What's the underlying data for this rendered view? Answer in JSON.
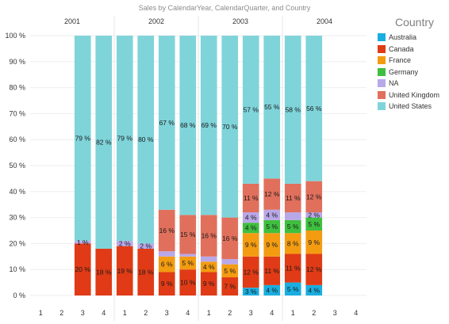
{
  "chart_data": {
    "type": "bar",
    "stacked": true,
    "normalized_percent": true,
    "title": "Sales by CalendarYear, CalendarQuarter, and Country",
    "y_tick_labels": [
      "0 %",
      "10 %",
      "20 %",
      "30 %",
      "40 %",
      "50 %",
      "60 %",
      "70 %",
      "80 %",
      "90 %",
      "100 %"
    ],
    "ylim": [
      0,
      100
    ],
    "grid": true,
    "legend_position": "right",
    "legend_title": "Country",
    "groups": [
      {
        "year": "2001",
        "quarters": [
          "1",
          "2",
          "3",
          "4"
        ]
      },
      {
        "year": "2002",
        "quarters": [
          "1",
          "2",
          "3",
          "4"
        ]
      },
      {
        "year": "2003",
        "quarters": [
          "1",
          "2",
          "3",
          "4"
        ]
      },
      {
        "year": "2004",
        "quarters": [
          "1",
          "2",
          "3",
          "4"
        ]
      }
    ],
    "series": [
      {
        "name": "Australia",
        "color": "#1aaee0",
        "values": [
          null,
          null,
          0,
          0,
          0,
          0,
          0,
          0,
          0,
          0,
          3,
          4,
          5,
          4,
          null,
          null
        ],
        "labels": [
          "",
          "",
          "",
          "",
          "",
          "",
          "",
          "",
          "",
          "",
          "3 %",
          "4 %",
          "5 %",
          "4 %",
          "",
          ""
        ]
      },
      {
        "name": "Canada",
        "color": "#e03b16",
        "values": [
          null,
          null,
          20,
          18,
          19,
          18,
          9,
          10,
          9,
          7,
          12,
          11,
          11,
          12,
          null,
          null
        ],
        "labels": [
          "",
          "",
          "20 %",
          "18 %",
          "19 %",
          "18 %",
          "9 %",
          "10 %",
          "9 %",
          "7 %",
          "12 %",
          "11 %",
          "11 %",
          "12 %",
          "",
          ""
        ]
      },
      {
        "name": "France",
        "color": "#f39c12",
        "values": [
          null,
          null,
          0,
          0,
          0,
          0,
          6,
          5,
          4,
          5,
          9,
          9,
          8,
          9,
          null,
          null
        ],
        "labels": [
          "",
          "",
          "",
          "",
          "",
          "",
          "6 %",
          "5 %",
          "4 %",
          "5 %",
          "9 %",
          "9 %",
          "8 %",
          "9 %",
          "",
          ""
        ]
      },
      {
        "name": "Germany",
        "color": "#3fbf3f",
        "values": [
          null,
          null,
          0,
          0,
          0,
          0,
          0,
          0,
          0,
          0,
          4,
          5,
          5,
          5,
          null,
          null
        ],
        "labels": [
          "",
          "",
          "",
          "",
          "",
          "",
          "",
          "",
          "",
          "",
          "4 %",
          "5 %",
          "5 %",
          "5 %",
          "",
          ""
        ]
      },
      {
        "name": "NA",
        "color": "#b9a8e8",
        "values": [
          null,
          null,
          1,
          0,
          2,
          2,
          2,
          1,
          2,
          2,
          4,
          4,
          3,
          2,
          null,
          null
        ],
        "labels": [
          "",
          "",
          "1 %",
          "",
          "2 %",
          "2 %",
          "",
          "",
          "",
          "",
          "4 %",
          "4 %",
          "",
          "2 %",
          "",
          ""
        ]
      },
      {
        "name": "United Kingdom",
        "color": "#e0705c",
        "values": [
          null,
          null,
          0,
          0,
          0,
          0,
          16,
          15,
          16,
          16,
          11,
          12,
          11,
          12,
          null,
          null
        ],
        "labels": [
          "",
          "",
          "",
          "",
          "",
          "",
          "16 %",
          "15 %",
          "16 %",
          "16 %",
          "11 %",
          "12 %",
          "11 %",
          "12 %",
          "",
          ""
        ]
      },
      {
        "name": "United States",
        "color": "#7fd4da",
        "values": [
          null,
          null,
          79,
          82,
          79,
          80,
          67,
          68,
          69,
          70,
          57,
          55,
          58,
          56,
          null,
          null
        ],
        "labels": [
          "",
          "",
          "79 %",
          "82 %",
          "79 %",
          "80 %",
          "67 %",
          "68 %",
          "69 %",
          "70 %",
          "57 %",
          "55 %",
          "58 %",
          "56 %",
          "",
          ""
        ]
      }
    ]
  }
}
